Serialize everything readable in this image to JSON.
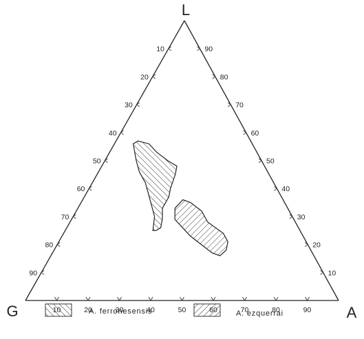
{
  "chart_data": {
    "type": "ternary",
    "vertices": {
      "top": "L",
      "left": "G",
      "right": "A"
    },
    "ticks": [
      10,
      20,
      30,
      40,
      50,
      60,
      70,
      80,
      90
    ],
    "axes": [
      {
        "side": "left",
        "variable": "G",
        "ticks": [
          10,
          20,
          30,
          40,
          50,
          60,
          70,
          80,
          90
        ]
      },
      {
        "side": "right",
        "variable": "L",
        "ticks": [
          10,
          20,
          30,
          40,
          50,
          60,
          70,
          80,
          90
        ]
      },
      {
        "side": "bottom",
        "variable": "A",
        "ticks": [
          10,
          20,
          30,
          40,
          50,
          60,
          70,
          80,
          90
        ]
      }
    ],
    "series": [
      {
        "name": "A. ferronesensis",
        "hatch": "forward",
        "polygon_LGA": [
          [
            56,
            33,
            11
          ],
          [
            53,
            32,
            15
          ],
          [
            50,
            30,
            20
          ],
          [
            48,
            28,
            24
          ],
          [
            45,
            30,
            25
          ],
          [
            40,
            34,
            26
          ],
          [
            37,
            36,
            27
          ],
          [
            33,
            40,
            27
          ],
          [
            29,
            42,
            29
          ],
          [
            26,
            44,
            30
          ],
          [
            25,
            46,
            29
          ],
          [
            25,
            47,
            28
          ],
          [
            30,
            44,
            26
          ],
          [
            34,
            43,
            23
          ],
          [
            38,
            42,
            20
          ],
          [
            42,
            41,
            17
          ],
          [
            46,
            41,
            13
          ],
          [
            50,
            40,
            10
          ],
          [
            53,
            39,
            8
          ],
          [
            56,
            38,
            6
          ],
          [
            57,
            36,
            7
          ]
        ]
      },
      {
        "name": "A. ezquerrai",
        "hatch": "backward",
        "polygon_LGA": [
          [
            36,
            32,
            32
          ],
          [
            35,
            30,
            35
          ],
          [
            32,
            28,
            40
          ],
          [
            28,
            28,
            44
          ],
          [
            24,
            25,
            51
          ],
          [
            21,
            25,
            54
          ],
          [
            18,
            27,
            55
          ],
          [
            16,
            30,
            54
          ],
          [
            17,
            32,
            51
          ],
          [
            20,
            34,
            46
          ],
          [
            23,
            36,
            41
          ],
          [
            26,
            37,
            37
          ],
          [
            29,
            38,
            33
          ],
          [
            33,
            36,
            31
          ]
        ]
      }
    ],
    "legend": [
      "A. ferronesensis",
      "A. ezquerrai"
    ],
    "legend_position": "bottom"
  }
}
